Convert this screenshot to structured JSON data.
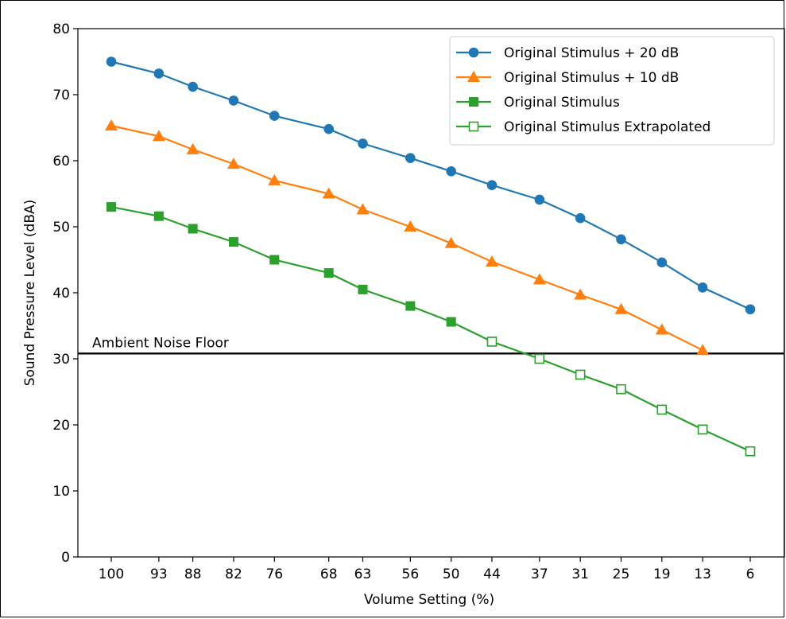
{
  "chart_data": {
    "type": "line",
    "title": "",
    "xlabel": "Volume Setting (%)",
    "ylabel": "Sound Pressure Level (dBA)",
    "ylim": [
      0,
      80
    ],
    "yticks": [
      0,
      10,
      20,
      30,
      40,
      50,
      60,
      70,
      80
    ],
    "categories": [
      "100",
      "93",
      "88",
      "82",
      "76",
      "68",
      "63",
      "56",
      "50",
      "44",
      "37",
      "31",
      "25",
      "19",
      "13",
      "6"
    ],
    "x": [
      100,
      93,
      88,
      82,
      76,
      68,
      63,
      56,
      50,
      44,
      37,
      31,
      25,
      19,
      13,
      6
    ],
    "grid": false,
    "legend_position": "top-right",
    "series": [
      {
        "name": "Original Stimulus + 20 dB",
        "color": "#1f77b4",
        "marker": "circle",
        "x": [
          100,
          93,
          88,
          82,
          76,
          68,
          63,
          56,
          50,
          44,
          37,
          31,
          25,
          19,
          13,
          6
        ],
        "values": [
          75.0,
          73.2,
          71.2,
          69.1,
          66.8,
          64.8,
          62.6,
          60.4,
          58.4,
          56.3,
          54.1,
          51.3,
          48.1,
          44.6,
          40.8,
          37.5
        ]
      },
      {
        "name": "Original Stimulus + 10 dB",
        "color": "#ff7f0e",
        "marker": "triangle",
        "x": [
          100,
          93,
          88,
          82,
          76,
          68,
          63,
          56,
          50,
          44,
          37,
          31,
          25,
          19,
          13
        ],
        "values": [
          65.3,
          63.7,
          61.7,
          59.5,
          57.0,
          55.0,
          52.6,
          50.0,
          47.5,
          44.7,
          42.0,
          39.7,
          37.5,
          34.4,
          31.3
        ]
      },
      {
        "name": "Original Stimulus",
        "color": "#2ca02c",
        "marker": "square",
        "x": [
          100,
          93,
          88,
          82,
          76,
          68,
          63,
          56,
          50,
          44
        ],
        "values": [
          53.0,
          51.6,
          49.7,
          47.7,
          45.0,
          43.0,
          40.5,
          38.0,
          35.6,
          32.6
        ]
      },
      {
        "name": "Original Stimulus Extrapolated",
        "color": "#2ca02c",
        "marker": "square-open",
        "x": [
          44,
          37,
          31,
          25,
          19,
          13,
          6
        ],
        "values": [
          32.6,
          30.0,
          27.6,
          25.4,
          22.3,
          19.3,
          16.0
        ]
      }
    ],
    "annotations": [
      {
        "text": "Ambient Noise Floor",
        "type": "hline",
        "y": 30.8,
        "color": "#000000"
      }
    ]
  }
}
